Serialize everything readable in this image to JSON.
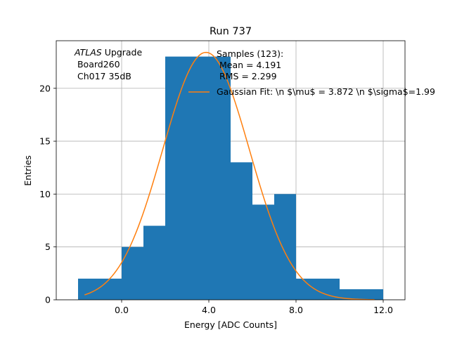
{
  "chart_data": {
    "type": "bar",
    "title": "Run 737",
    "xlabel": "Energy [ADC Counts]",
    "ylabel": "Entries",
    "xlim": [
      -3.0,
      13.0
    ],
    "ylim": [
      0,
      24.5
    ],
    "xticks": [
      0.0,
      4.0,
      8.0,
      12.0
    ],
    "xtick_labels": [
      "0.0",
      "4.0",
      "8.0",
      "12.0"
    ],
    "yticks": [
      0,
      5,
      10,
      15,
      20
    ],
    "ytick_labels": [
      "0",
      "5",
      "10",
      "15",
      "20"
    ],
    "grid": true,
    "bins": [
      {
        "x0": -2,
        "x1": 0,
        "count": 2
      },
      {
        "x0": 0,
        "x1": 1,
        "count": 5
      },
      {
        "x0": 1,
        "x1": 2,
        "count": 7
      },
      {
        "x0": 2,
        "x1": 5,
        "count": 23
      },
      {
        "x0": 5,
        "x1": 6,
        "count": 13
      },
      {
        "x0": 6,
        "x1": 7,
        "count": 9
      },
      {
        "x0": 7,
        "x1": 8,
        "count": 10
      },
      {
        "x0": 8,
        "x1": 10,
        "count": 2
      },
      {
        "x0": 10,
        "x1": 12,
        "count": 1
      }
    ],
    "bar_color": "#1f77b4",
    "fit": {
      "amplitude": 23.4,
      "mean": 3.872,
      "sigma": 1.99,
      "x_range": [
        -1.7,
        11.6
      ],
      "color": "#ff7f0e"
    },
    "annotation": {
      "italic_part": "ATLAS",
      "line1_rest": " Upgrade",
      "line2": " Board260",
      "line3": " Ch017 35dB"
    },
    "legend": {
      "position": "top-right",
      "header": "Samples (123):",
      "mean_line": " Mean = 4.191",
      "rms_line": " RMS = 2.299",
      "fit_label": "Gaussian Fit: \\n $\\mu$ = 3.872 \\n $\\sigma$=1.99"
    }
  }
}
